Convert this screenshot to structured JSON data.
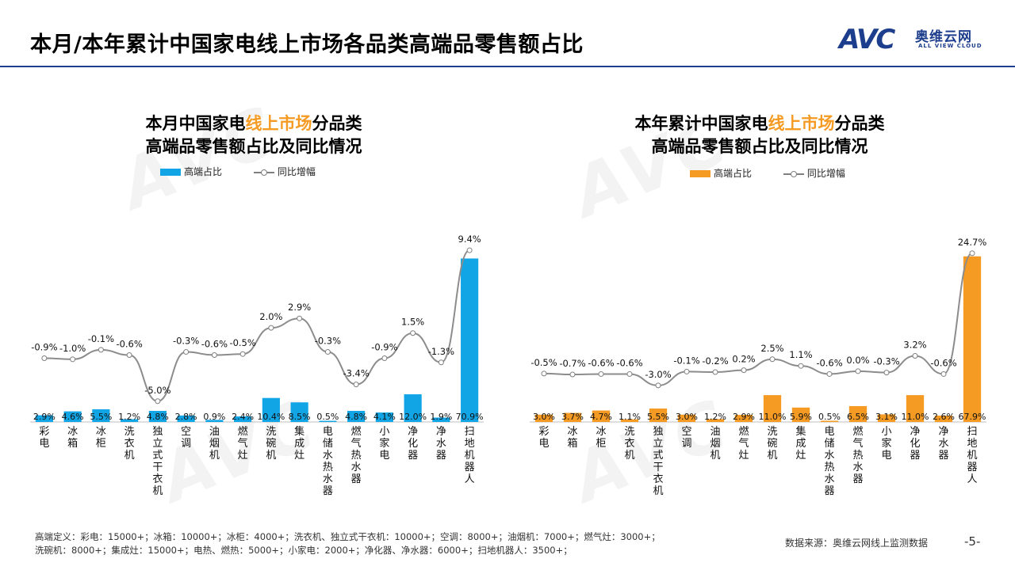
{
  "page": {
    "title": "本月/本年累计中国家电线上市场各品类高端品零售额占比",
    "logo_mark": "AVC",
    "logo_cn": "奥维云网",
    "logo_en": "ALL VIEW CLOUD",
    "footnote": "高端定义：彩电：15000+；冰箱：10000+；冰柜：4000+；洗衣机、独立式干衣机：10000+；空调：8000+；油烟机：7000+；燃气灶：3000+；洗碗机：8000+；集成灶：15000+；电热、燃热：5000+；小家电：2000+；净化器、净水器：6000+；扫地机器人：3500+；",
    "source": "数据来源：奥维云网线上监测数据",
    "page_number": "-5-"
  },
  "colors": {
    "brand": "#1d3e8c",
    "left_bar": "#12a5e6",
    "right_bar": "#f59a23",
    "line": "#8c8c8c",
    "highlight": "#f59a23"
  },
  "chart_data": [
    {
      "type": "bar",
      "title_line1_a": "本月中国家电",
      "title_line1_hl": "线上市场",
      "title_line1_b": "分品类",
      "title_line2": "高端品零售额占比及同比情况",
      "legend": {
        "bar": "高端占比",
        "line": "同比增幅"
      },
      "categories": [
        "彩电",
        "冰箱",
        "冰柜",
        "洗衣机",
        "独立式干衣机",
        "空调",
        "油烟机",
        "燃气灶",
        "洗碗机",
        "集成灶",
        "电储水热水器",
        "燃气热水器",
        "小家电",
        "净化器",
        "净水器",
        "扫地机器人"
      ],
      "series": [
        {
          "name": "高端占比",
          "type": "bar",
          "values": [
            2.9,
            4.6,
            5.5,
            1.2,
            4.8,
            2.8,
            0.9,
            2.4,
            10.4,
            8.5,
            0.5,
            4.8,
            4.1,
            12.0,
            1.9,
            70.9
          ],
          "labels": [
            "2.9%",
            "4.6%",
            "5.5%",
            "1.2%",
            "4.8%",
            "2.8%",
            "0.9%",
            "2.4%",
            "10.4%",
            "8.5%",
            "0.5%",
            "4.8%",
            "4.1%",
            "12.0%",
            "1.9%",
            "70.9%"
          ]
        },
        {
          "name": "同比增幅",
          "type": "line",
          "values": [
            -0.9,
            -1.0,
            -0.1,
            -0.6,
            -5.0,
            -0.3,
            -0.6,
            -0.5,
            2.0,
            2.9,
            -0.3,
            -3.4,
            -0.9,
            1.5,
            -1.3,
            9.4
          ],
          "labels": [
            "-0.9%",
            "-1.0%",
            "-0.1%",
            "-0.6%",
            "-5.0%",
            "-0.3%",
            "-0.6%",
            "-0.5%",
            "2.0%",
            "2.9%",
            "-0.3%",
            "-3.4%",
            "-0.9%",
            "1.5%",
            "-1.3%",
            "9.4%"
          ]
        }
      ],
      "bar_ylim": [
        0,
        80
      ],
      "line_ylim": [
        -6,
        11
      ]
    },
    {
      "type": "bar",
      "title_line1_a": "本年累计中国家电",
      "title_line1_hl": "线上市场",
      "title_line1_b": "分品类",
      "title_line2": "高端品零售额占比及同比情况",
      "legend": {
        "bar": "高端占比",
        "line": "同比增幅"
      },
      "categories": [
        "彩电",
        "冰箱",
        "冰柜",
        "洗衣机",
        "独立式干衣机",
        "空调",
        "油烟机",
        "燃气灶",
        "洗碗机",
        "集成灶",
        "电储水热水器",
        "燃气热水器",
        "小家电",
        "净化器",
        "净水器",
        "扫地机器人"
      ],
      "series": [
        {
          "name": "高端占比",
          "type": "bar",
          "values": [
            3.0,
            3.7,
            4.7,
            1.1,
            5.5,
            3.0,
            1.2,
            2.9,
            11.0,
            5.9,
            0.5,
            6.5,
            3.1,
            11.0,
            2.6,
            67.9
          ],
          "labels": [
            "3.0%",
            "3.7%",
            "4.7%",
            "1.1%",
            "5.5%",
            "3.0%",
            "1.2%",
            "2.9%",
            "11.0%",
            "5.9%",
            "0.5%",
            "6.5%",
            "3.1%",
            "11.0%",
            "2.6%",
            "67.9%"
          ]
        },
        {
          "name": "同比增幅",
          "type": "line",
          "values": [
            -0.5,
            -0.7,
            -0.6,
            -0.6,
            -3.0,
            -0.1,
            -0.2,
            0.2,
            2.5,
            1.1,
            -0.6,
            0.0,
            -0.3,
            3.2,
            -0.6,
            24.7
          ],
          "labels": [
            "-0.5%",
            "-0.7%",
            "-0.6%",
            "-0.6%",
            "-3.0%",
            "-0.1%",
            "-0.2%",
            "0.2%",
            "2.5%",
            "1.1%",
            "-0.6%",
            "0.0%",
            "-0.3%",
            "3.2%",
            "-0.6%",
            "24.7%"
          ]
        }
      ],
      "bar_ylim": [
        0,
        74
      ],
      "line_ylim": [
        -6,
        28
      ]
    }
  ]
}
